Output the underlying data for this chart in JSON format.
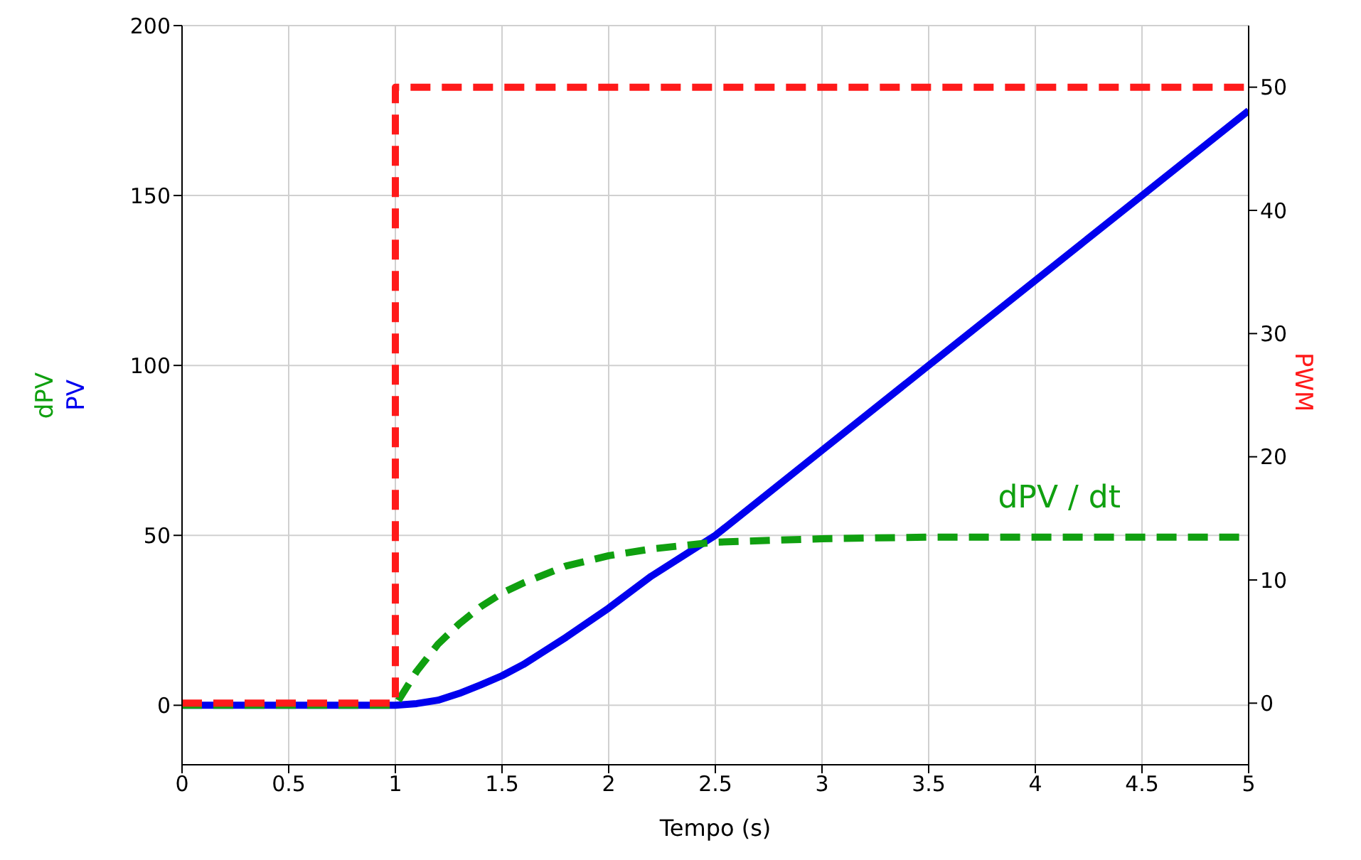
{
  "chart_data": {
    "type": "line",
    "xlabel": "Tempo (s)",
    "ylabel": "PV",
    "y2label": "PWM",
    "annotations": [
      "dPV"
    ],
    "x": [
      0,
      1,
      1.1,
      1.2,
      1.3,
      1.4,
      1.5,
      1.6,
      1.8,
      2,
      2.2,
      2.5,
      3,
      3.5,
      4,
      4.5,
      5
    ],
    "series": [
      {
        "color": "#0000ee",
        "line_style": "solid",
        "values": [
          0,
          0,
          0.5,
          1.5,
          3.5,
          6,
          8.7,
          12,
          20,
          28.6,
          38,
          50,
          75,
          100,
          125,
          150,
          175
        ]
      },
      {
        "name": "dPV / dt",
        "color": "#10a010",
        "line_style": "dashed",
        "values": [
          0,
          0,
          10,
          18,
          24,
          29,
          33,
          36,
          41,
          44,
          46,
          48,
          49,
          49.5,
          49.5,
          49.5,
          49.5
        ]
      },
      {
        "type": "step",
        "axis": "y2",
        "color": "#ff1a1a",
        "line_style": "dashed",
        "x": [
          0,
          1,
          5
        ],
        "values": [
          0,
          50,
          50
        ]
      }
    ],
    "xlim": [
      0,
      5
    ],
    "xticks": [
      0,
      0.5,
      1,
      1.5,
      2,
      2.5,
      3,
      3.5,
      4,
      4.5,
      5
    ],
    "ylim": [
      -17.5,
      200
    ],
    "yticks": [
      0,
      50,
      100,
      150,
      200
    ],
    "y2lim": [
      -5,
      55
    ],
    "y2ticks": [
      0,
      10,
      20,
      30,
      40,
      50
    ],
    "grid": true,
    "marker": "none"
  }
}
